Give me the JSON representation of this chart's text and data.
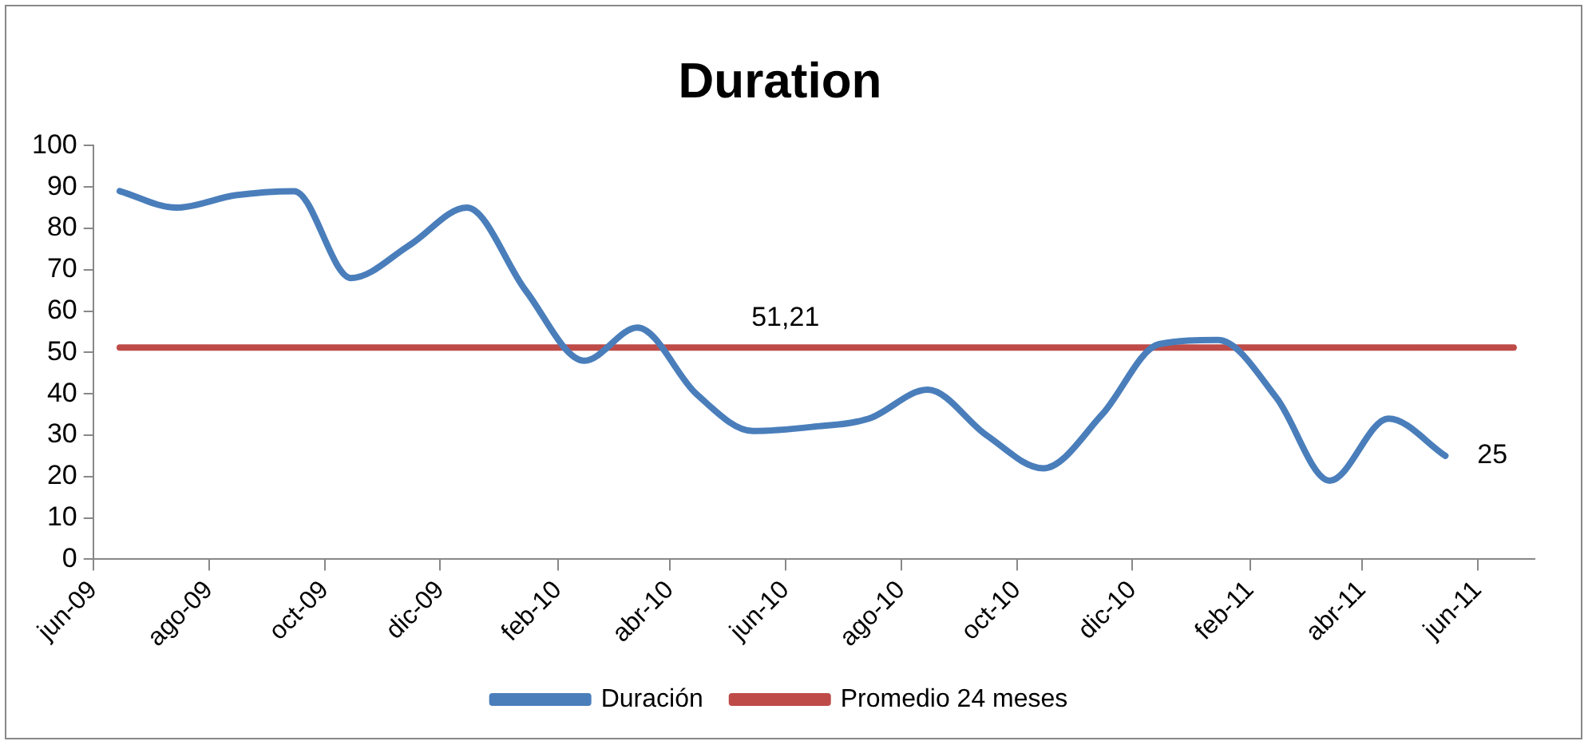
{
  "chart_data": {
    "type": "line",
    "title": "Duration",
    "x": [
      "2009-06-15",
      "2009-07-15",
      "2009-08-15",
      "2009-09-15",
      "2009-10-15",
      "2009-11-15",
      "2009-12-15",
      "2010-01-15",
      "2010-02-15",
      "2010-03-15",
      "2010-04-15",
      "2010-05-15",
      "2010-06-15",
      "2010-07-15",
      "2010-08-15",
      "2010-09-15",
      "2010-10-15",
      "2010-11-15",
      "2010-12-15",
      "2011-01-15",
      "2011-02-15",
      "2011-03-15",
      "2011-04-15",
      "2011-05-15"
    ],
    "series": [
      {
        "name": "Duración",
        "color": "#4a7ebb",
        "values": [
          89,
          85,
          88,
          89,
          68,
          76,
          85,
          65,
          48,
          56,
          40,
          31,
          32,
          34,
          41,
          30,
          22,
          35,
          52,
          53,
          39,
          19,
          34,
          25
        ],
        "value_labels": [
          null,
          null,
          null,
          null,
          null,
          null,
          null,
          null,
          null,
          null,
          null,
          null,
          null,
          null,
          null,
          null,
          null,
          null,
          null,
          null,
          null,
          null,
          null,
          "25"
        ]
      },
      {
        "name": "Promedio 24 meses",
        "color": "#be4b48",
        "x": [
          "2009-06-15",
          "2011-06-20"
        ],
        "values": [
          51.21,
          51.21
        ]
      }
    ],
    "annotations": [
      {
        "text": "51,21",
        "x": "2010-06-01",
        "y": 51.21
      }
    ],
    "xlim": [
      "2009-06-01",
      "2011-07-01"
    ],
    "xticks": [
      {
        "value": "2009-06-01",
        "label": "jun-09"
      },
      {
        "value": "2009-08-01",
        "label": "ago-09"
      },
      {
        "value": "2009-10-01",
        "label": "oct-09"
      },
      {
        "value": "2009-12-01",
        "label": "dic-09"
      },
      {
        "value": "2010-02-01",
        "label": "feb-10"
      },
      {
        "value": "2010-04-01",
        "label": "abr-10"
      },
      {
        "value": "2010-06-01",
        "label": "jun-10"
      },
      {
        "value": "2010-08-01",
        "label": "ago-10"
      },
      {
        "value": "2010-10-01",
        "label": "oct-10"
      },
      {
        "value": "2010-12-01",
        "label": "dic-10"
      },
      {
        "value": "2011-02-01",
        "label": "feb-11"
      },
      {
        "value": "2011-04-01",
        "label": "abr-11"
      },
      {
        "value": "2011-06-01",
        "label": "jun-11"
      }
    ],
    "ylim": [
      0,
      100
    ],
    "yticks": [
      0,
      10,
      20,
      30,
      40,
      50,
      60,
      70,
      80,
      90,
      100
    ],
    "grid": false,
    "legend": "bottom",
    "marker": "none",
    "line_style": "solid"
  }
}
